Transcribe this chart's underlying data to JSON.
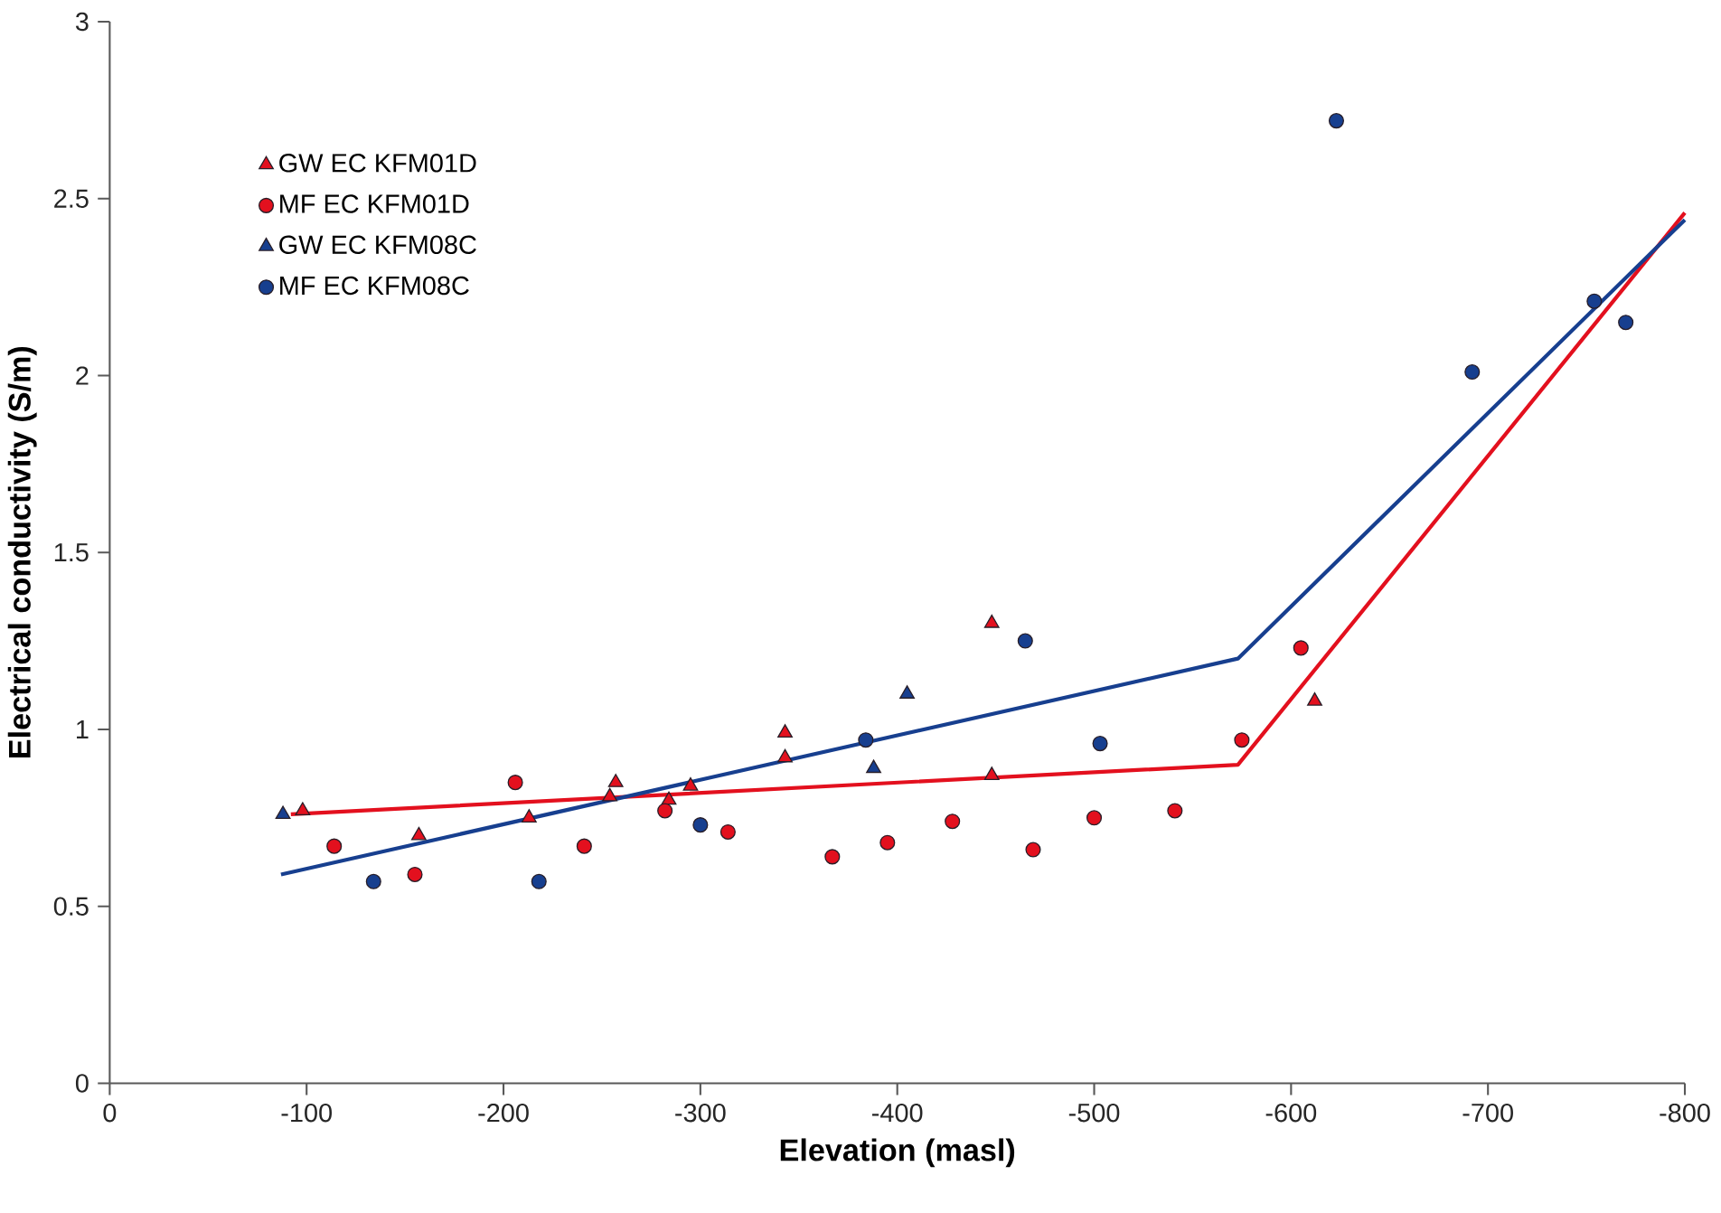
{
  "chart_data": {
    "type": "scatter",
    "xlabel": "Elevation (masl)",
    "ylabel": "Electrical conductivity (S/m)",
    "xlim": [
      0,
      -800
    ],
    "xticks": [
      0,
      -100,
      -200,
      -300,
      -400,
      -500,
      -600,
      -700,
      -800
    ],
    "ylim": [
      0,
      3
    ],
    "yticks": [
      0,
      0.5,
      1,
      1.5,
      2,
      2.5,
      3
    ],
    "grid": false,
    "legend": "top left",
    "series": [
      {
        "name": "GW EC KFM01D",
        "color": "#e3101e",
        "marker": "triangle",
        "x": [
          -98,
          -157,
          -213,
          -257,
          -254,
          -284,
          -295,
          -343,
          -343,
          -448,
          -448,
          -612
        ],
        "values": [
          0.77,
          0.7,
          0.75,
          0.85,
          0.81,
          0.8,
          0.84,
          0.99,
          0.92,
          1.3,
          0.87,
          1.08
        ]
      },
      {
        "name": "MF EC KFM01D",
        "color": "#e3101e",
        "marker": "circle",
        "x": [
          -114,
          -155,
          -206,
          -241,
          -282,
          -314,
          -367,
          -395,
          -428,
          -469,
          -500,
          -541,
          -575,
          -605
        ],
        "values": [
          0.67,
          0.59,
          0.85,
          0.67,
          0.77,
          0.71,
          0.64,
          0.68,
          0.74,
          0.66,
          0.75,
          0.77,
          0.97,
          1.23
        ]
      },
      {
        "name": "GW EC KFM08C",
        "color": "#173f8f",
        "marker": "triangle",
        "x": [
          -88,
          -388,
          -405
        ],
        "values": [
          0.76,
          0.89,
          1.1
        ]
      },
      {
        "name": "MF EC KFM08C",
        "color": "#173f8f",
        "marker": "circle",
        "x": [
          -134,
          -218,
          -300,
          -384,
          -465,
          -503,
          -623,
          -692,
          -754,
          -770
        ],
        "values": [
          0.57,
          0.57,
          0.73,
          0.97,
          1.25,
          0.96,
          2.72,
          2.01,
          2.21,
          2.15
        ]
      },
      {
        "type": "line",
        "color": "#e3101e",
        "marker": "none",
        "x": [
          -92,
          -573,
          -800
        ],
        "values": [
          0.76,
          0.9,
          2.46
        ]
      },
      {
        "type": "line",
        "color": "#173f8f",
        "marker": "none",
        "x": [
          -87,
          -573,
          -800
        ],
        "values": [
          0.59,
          1.2,
          2.44
        ]
      }
    ]
  }
}
